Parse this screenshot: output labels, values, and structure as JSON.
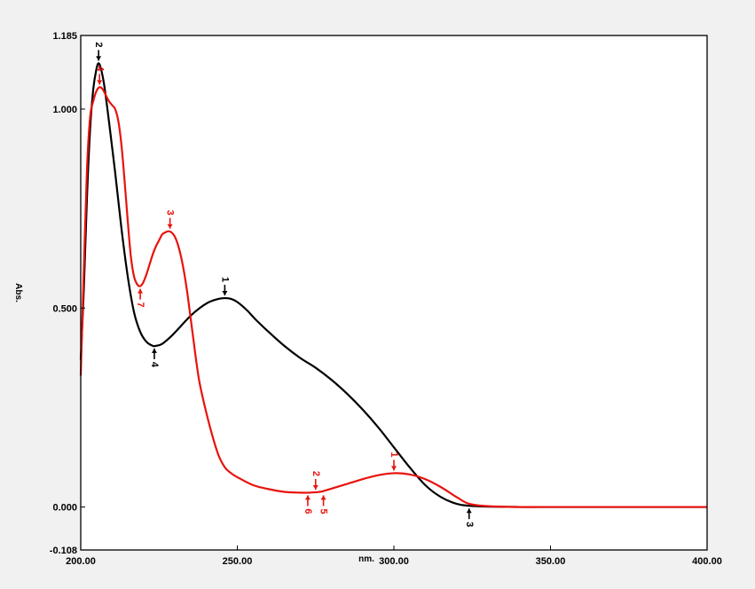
{
  "chart_data": {
    "type": "line",
    "title": "",
    "xlabel": "nm.",
    "ylabel": "Abs.",
    "xlim": [
      200,
      400
    ],
    "ylim": [
      -0.108,
      1.185
    ],
    "grid": false,
    "x_ticks": [
      {
        "value": 200,
        "label": "200.00"
      },
      {
        "value": 250,
        "label": "250.00"
      },
      {
        "value": 300,
        "label": "300.00"
      },
      {
        "value": 350,
        "label": "350.00"
      },
      {
        "value": 400,
        "label": "400.00"
      }
    ],
    "y_ticks": [
      {
        "value": 1.185,
        "label": "1.185"
      },
      {
        "value": 1.0,
        "label": "1.000"
      },
      {
        "value": 0.5,
        "label": "0.500"
      },
      {
        "value": 0.0,
        "label": "0.000"
      },
      {
        "value": -0.108,
        "label": "-0.108"
      }
    ],
    "series": [
      {
        "color": "#000000",
        "x": [
          200,
          201,
          202,
          203,
          204,
          205,
          205.7,
          206.5,
          207.5,
          209,
          211,
          213,
          215,
          217,
          219,
          221,
          223,
          224,
          226,
          229,
          232,
          235,
          238,
          241,
          244,
          246,
          248,
          250,
          253,
          256,
          260,
          265,
          270,
          275,
          280,
          285,
          290,
          295,
          300,
          305,
          310,
          315,
          320,
          324,
          330,
          340,
          350,
          360,
          370,
          380,
          390,
          400
        ],
        "y": [
          0.37,
          0.55,
          0.78,
          0.95,
          1.05,
          1.1,
          1.115,
          1.1,
          1.06,
          0.97,
          0.84,
          0.7,
          0.58,
          0.49,
          0.44,
          0.415,
          0.405,
          0.405,
          0.41,
          0.43,
          0.455,
          0.48,
          0.5,
          0.515,
          0.523,
          0.525,
          0.523,
          0.515,
          0.495,
          0.47,
          0.44,
          0.405,
          0.375,
          0.35,
          0.32,
          0.285,
          0.245,
          0.2,
          0.15,
          0.1,
          0.055,
          0.025,
          0.008,
          0.003,
          0.001,
          0,
          0,
          0,
          0,
          0,
          0,
          0
        ]
      },
      {
        "color": "#e8120c",
        "x": [
          200,
          201,
          202,
          203,
          204,
          205,
          206,
          207,
          208,
          209,
          210,
          211,
          212,
          213,
          214,
          215,
          216,
          217,
          218,
          219,
          220,
          221,
          222,
          223,
          224,
          225,
          226,
          227,
          228,
          229,
          230,
          231,
          232,
          233,
          234,
          235,
          236,
          237,
          238,
          240,
          242,
          244,
          246,
          248,
          250,
          255,
          260,
          265,
          270,
          273,
          275,
          277,
          280,
          285,
          290,
          295,
          300,
          305,
          310,
          315,
          320,
          324,
          330,
          340,
          350,
          360,
          370,
          380,
          390,
          400
        ],
        "y": [
          0.33,
          0.6,
          0.85,
          0.98,
          1.02,
          1.045,
          1.055,
          1.05,
          1.035,
          1.02,
          1.01,
          1.0,
          0.97,
          0.91,
          0.82,
          0.72,
          0.63,
          0.58,
          0.56,
          0.555,
          0.565,
          0.585,
          0.61,
          0.635,
          0.655,
          0.67,
          0.685,
          0.69,
          0.693,
          0.69,
          0.68,
          0.66,
          0.63,
          0.59,
          0.54,
          0.48,
          0.42,
          0.36,
          0.31,
          0.24,
          0.18,
          0.13,
          0.1,
          0.085,
          0.075,
          0.055,
          0.045,
          0.038,
          0.036,
          0.036,
          0.037,
          0.039,
          0.046,
          0.058,
          0.07,
          0.08,
          0.085,
          0.082,
          0.07,
          0.05,
          0.025,
          0.008,
          0.002,
          0,
          0,
          0,
          0,
          0,
          0,
          0
        ]
      }
    ],
    "peak_markers": [
      {
        "series": 0,
        "label": "1",
        "x": 246,
        "y": 0.525,
        "side": "above"
      },
      {
        "series": 0,
        "label": "2",
        "x": 205.7,
        "y": 1.115,
        "side": "above"
      },
      {
        "series": 0,
        "label": "3",
        "x": 324,
        "y": 0.003,
        "side": "below"
      },
      {
        "series": 0,
        "label": "4",
        "x": 223.5,
        "y": 0.405,
        "side": "below"
      },
      {
        "series": 1,
        "label": "1",
        "x": 300,
        "y": 0.085,
        "side": "above"
      },
      {
        "series": 1,
        "label": "2",
        "x": 275,
        "y": 0.037,
        "side": "above"
      },
      {
        "series": 1,
        "label": "3",
        "x": 228.5,
        "y": 0.693,
        "side": "above"
      },
      {
        "series": 1,
        "label": "4",
        "x": 206,
        "y": 1.055,
        "side": "above"
      },
      {
        "series": 1,
        "label": "5",
        "x": 277.5,
        "y": 0.036,
        "side": "below"
      },
      {
        "series": 1,
        "label": "6",
        "x": 272.5,
        "y": 0.036,
        "side": "below"
      },
      {
        "series": 1,
        "label": "7",
        "x": 219,
        "y": 0.555,
        "side": "below"
      }
    ]
  }
}
